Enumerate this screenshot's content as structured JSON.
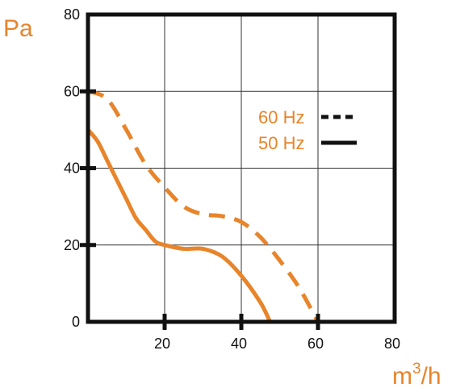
{
  "chart_data": {
    "type": "line",
    "xlabel": "m",
    "xlabel_sup": "3",
    "xlabel_suffix": "/h",
    "ylabel": "Pa",
    "xlim": [
      0,
      80
    ],
    "ylim": [
      0,
      80
    ],
    "x_ticks": [
      20,
      40,
      60,
      80
    ],
    "y_ticks": [
      0,
      20,
      40,
      60,
      80
    ],
    "grid": true,
    "legend_position": "right",
    "series": [
      {
        "name": "60 Hz",
        "style": "dashed",
        "x": [
          0,
          5,
          10,
          15,
          20,
          25,
          30,
          35,
          40,
          45,
          50,
          55,
          60
        ],
        "y": [
          60,
          58,
          50,
          41,
          35,
          30,
          28,
          27.5,
          26,
          22,
          16,
          9,
          0
        ]
      },
      {
        "name": "50 Hz",
        "style": "solid",
        "x": [
          0,
          2.5,
          5,
          7.5,
          10,
          12.5,
          15,
          17.5,
          20,
          25,
          30,
          35,
          40,
          45,
          47.5
        ],
        "y": [
          50,
          47,
          42,
          37,
          32,
          27,
          24,
          21,
          20,
          19,
          19,
          17,
          12,
          5,
          0
        ]
      }
    ],
    "colors": {
      "curve": "#e8842a",
      "label": "#e8842a",
      "axis": "#111111",
      "grid": "#333333"
    }
  }
}
